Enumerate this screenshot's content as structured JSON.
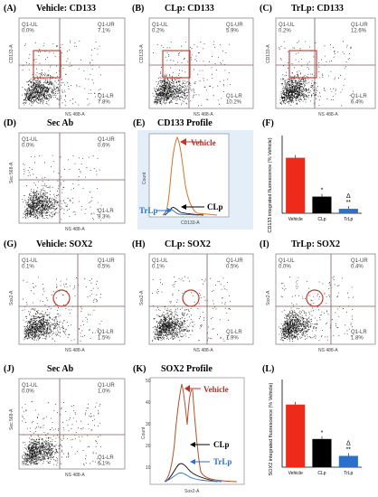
{
  "panels": {
    "A": {
      "label": "(A)",
      "title": "Vehicle: CD133",
      "quadrants": {
        "ul": "Q1-UL\n0.0%",
        "ur": "Q1-UR\n7.1%",
        "lr": "Q1-LR\n7.8%"
      },
      "ylabel": "CD133-A",
      "xlabel": "NS 488-A"
    },
    "B": {
      "label": "(B)",
      "title": "CLp: CD133",
      "quadrants": {
        "ul": "Q1-UL\n0.2%",
        "ur": "Q1-UR\n5.9%",
        "lr": "Q1-LR\n10.2%"
      },
      "ylabel": "CD133-A",
      "xlabel": "NS 488-A"
    },
    "C": {
      "label": "(C)",
      "title": "TrLp: CD133",
      "quadrants": {
        "ul": "Q1-UL\n0.2%",
        "ur": "Q1-UR\n12.6%",
        "lr": "Q1-LR\n6.4%"
      },
      "ylabel": "CD133-A",
      "xlabel": "NS 488-A"
    },
    "D": {
      "label": "(D)",
      "title": "Sec Ab",
      "quadrants": {
        "ul": "Q1-UL\n0.0%",
        "ur": "Q1-UR\n0.6%",
        "lr": "Q1-LR\n9.3%"
      },
      "ylabel": "Sec 568-A",
      "xlabel": "NS 488-A"
    },
    "E": {
      "label": "(E)",
      "title": "CD133 Profile",
      "xlabel": "CD133-A",
      "ylabel": "Count",
      "series_labels": [
        "Vehicle",
        "CLp",
        "TrLp"
      ]
    },
    "F": {
      "label": "(F)",
      "ylabel": "CD133 integrated fluorescence (% Vehicle)"
    },
    "G": {
      "label": "(G)",
      "title": "Vehicle: SOX2",
      "quadrants": {
        "ul": "Q1-UL\n0.1%",
        "ur": "Q1-UR\n0.5%",
        "lr": "Q1-LR\n1.5%"
      },
      "ylabel": "Sox2-A",
      "xlabel": "NS 488-A"
    },
    "H": {
      "label": "(H)",
      "title": "CLp: SOX2",
      "quadrants": {
        "ul": "Q1-UL\n0.1%",
        "ur": "Q1-UR\n0.5%",
        "lr": "Q1-LR\n1.9%"
      },
      "ylabel": "Sox2-A",
      "xlabel": "NS 488-A"
    },
    "I": {
      "label": "(I)",
      "title": "TrLp: SOX2",
      "quadrants": {
        "ul": "Q1-UL\n0.0%",
        "ur": "Q1-UR\n0.4%",
        "lr": "Q1-LR\n1.8%"
      },
      "ylabel": "Sox2-A",
      "xlabel": "NS 488-A"
    },
    "J": {
      "label": "(J)",
      "title": "Sec Ab",
      "quadrants": {
        "ul": "Q1-UL\n0.0%",
        "ur": "Q1-UR\n1.0%",
        "ll": "Q1-LL\n92.9%",
        "lr": "Q1-LR\n6.1%"
      },
      "ylabel": "Sec 568-A",
      "xlabel": "NS 488-A"
    },
    "K": {
      "label": "(K)",
      "title": "SOX2 Profile",
      "xlabel": "Sox2-A",
      "ylabel": "Count",
      "series_labels": [
        "Vehicle",
        "CLp",
        "TrLp"
      ]
    },
    "L": {
      "label": "(L)",
      "ylabel": "SOX2 integrated fluorescence (% Vehicle)"
    }
  },
  "chart_data": [
    {
      "type": "bar",
      "panel": "F",
      "categories": [
        "Vehicle",
        "CLp",
        "TrLp"
      ],
      "values": [
        100,
        30,
        8
      ],
      "colors": [
        "#ee2a1b",
        "#000000",
        "#2a6fc9"
      ],
      "annotations": [
        "",
        "*",
        "Δ\n**"
      ],
      "ylabel": "CD133 integrated fluorescence (% Vehicle)",
      "ylim": [
        0,
        140
      ]
    },
    {
      "type": "bar",
      "panel": "L",
      "categories": [
        "Vehicle",
        "CLp",
        "TrLp"
      ],
      "values": [
        100,
        45,
        18
      ],
      "colors": [
        "#ee2a1b",
        "#000000",
        "#2a6fc9"
      ],
      "annotations": [
        "",
        "*",
        "Δ\n**"
      ],
      "ylabel": "SOX2 integrated fluorescence (% Vehicle)",
      "ylim": [
        0,
        140
      ]
    },
    {
      "type": "line",
      "panel": "E",
      "xlabel": "CD133-A",
      "ylabel": "Count",
      "series": [
        {
          "name": "Vehicle",
          "color": "#d4742a"
        },
        {
          "name": "CLp",
          "color": "#000000"
        },
        {
          "name": "TrLp",
          "color": "#2a6fc9"
        }
      ]
    },
    {
      "type": "line",
      "panel": "K",
      "xlabel": "Sox2-A",
      "ylabel": "Count",
      "ylim": [
        0,
        50
      ],
      "series": [
        {
          "name": "Vehicle",
          "color": "#b5502a"
        },
        {
          "name": "CLp",
          "color": "#000000"
        },
        {
          "name": "TrLp",
          "color": "#2a6fc9"
        }
      ]
    }
  ]
}
